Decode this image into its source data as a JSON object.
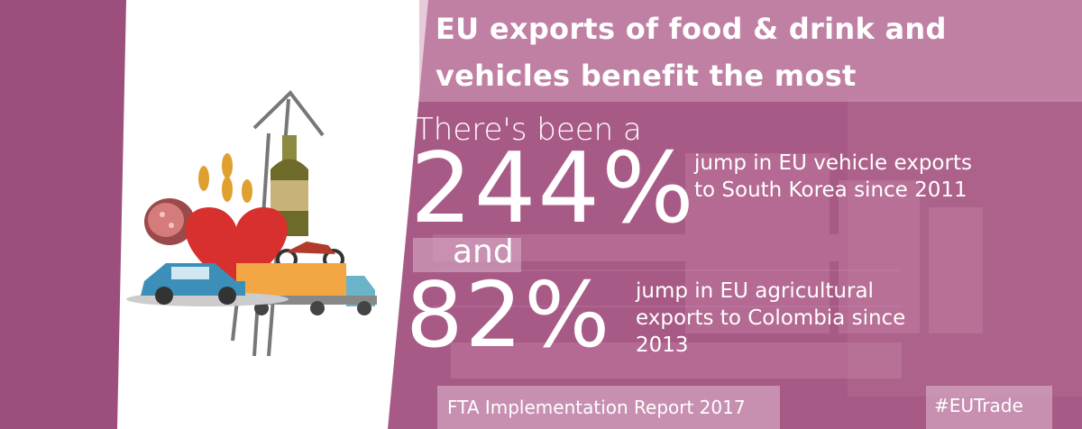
{
  "title": "EU exports of food & drink and vehicles benefit the most",
  "intro": "There's been a",
  "stat1": {
    "value": "244%",
    "description": "jump in EU vehicle exports to South Korea since 2011"
  },
  "conjunction": "and",
  "stat2": {
    "value": "82%",
    "description": "jump in EU agricultural exports to Colombia since 2013"
  },
  "footer": {
    "source": "FTA Implementation Report 2017",
    "hashtag": "#EUTrade"
  },
  "colors": {
    "background": "#a85a86",
    "panel": "#ffffff",
    "text": "#ffffff"
  },
  "icons": [
    "arrow-up-icon",
    "wine-bottle-icon",
    "wheat-icon",
    "salami-icon",
    "heart-icon",
    "motorcycle-icon",
    "car-icon",
    "truck-icon"
  ]
}
